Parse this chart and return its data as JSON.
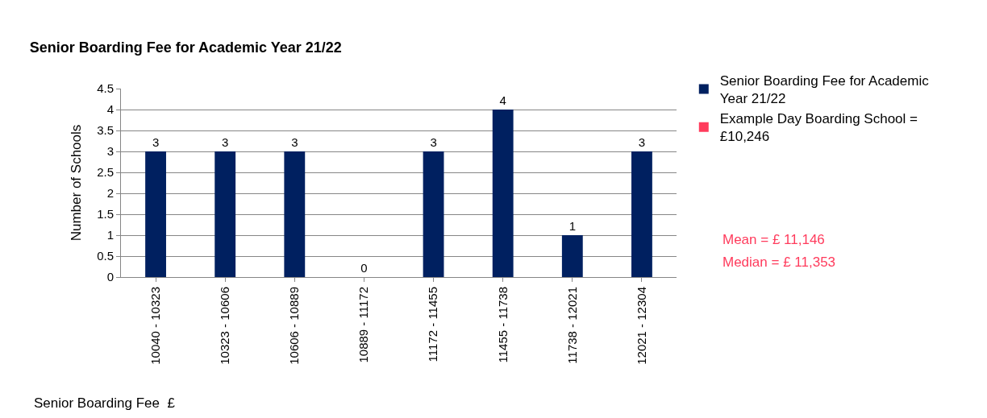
{
  "chart_data": {
    "type": "bar",
    "title": "Senior Boarding Fee for Academic Year 21/22",
    "xlabel": "Senior Boarding Fee  £",
    "ylabel": "Number of Schools",
    "categories": [
      "10040 - 10323",
      "10323 - 10606",
      "10606 - 10889",
      "10889 - 11172",
      "11172 - 11455",
      "11455 - 11738",
      "11738 - 12021",
      "12021 - 12304"
    ],
    "series": [
      {
        "name": "Senior Boarding Fee for Academic Year 21/22",
        "color": "#002060",
        "values": [
          3,
          3,
          3,
          0,
          3,
          4,
          1,
          3
        ]
      },
      {
        "name": "Example Day Boarding School = £10,246",
        "color": "#ff3b5c",
        "values": [
          null,
          null,
          null,
          null,
          null,
          null,
          null,
          null
        ]
      }
    ],
    "ylim": [
      0,
      4.5
    ],
    "yticks": [
      0,
      0.5,
      1,
      1.5,
      2,
      2.5,
      3,
      3.5,
      4,
      4.5
    ],
    "grid": "y",
    "legend": "top right",
    "data_labels": true,
    "annotations": [
      "Mean = £ 11,146",
      "Median = £ 11,353"
    ]
  }
}
